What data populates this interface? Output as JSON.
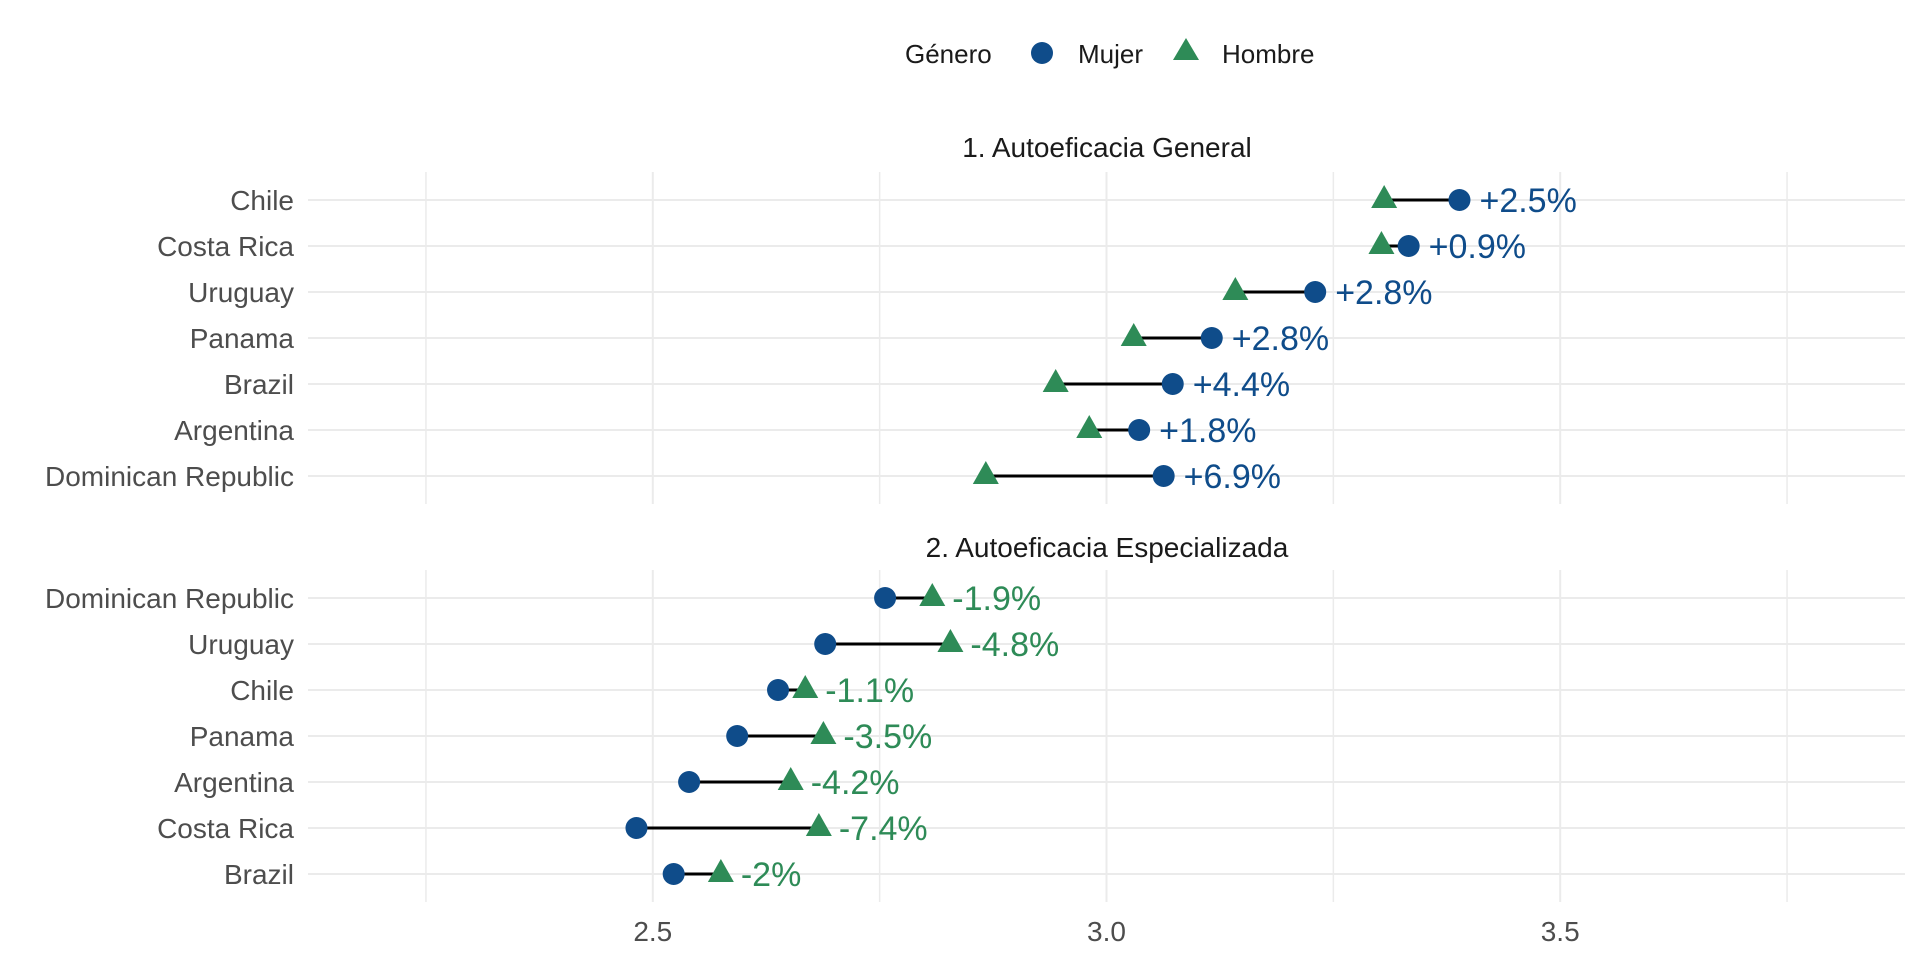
{
  "chart_data": {
    "type": "dumbbell",
    "legend": {
      "title": "Género",
      "placement": "top",
      "entries": [
        {
          "name": "Mujer",
          "shape": "circle",
          "color": "#0f4c8a"
        },
        {
          "name": "Hombre",
          "shape": "triangle",
          "color": "#2e8b57"
        }
      ]
    },
    "x_axis": {
      "range": [
        2.12,
        3.88
      ],
      "ticks": [
        2.5,
        3.0,
        3.5
      ],
      "tick_labels": [
        "2.5",
        "3.0",
        "3.5"
      ],
      "minor_ticks": [
        2.25,
        2.75,
        3.25,
        3.75
      ],
      "grid": true
    },
    "panels": [
      {
        "title": "1. Autoeficacia General",
        "label_color": "#0f4c8a",
        "rows": [
          {
            "country": "Chile",
            "mujer": 3.389,
            "hombre": 3.306,
            "label": "+2.5%"
          },
          {
            "country": "Costa Rica",
            "mujer": 3.333,
            "hombre": 3.303,
            "label": "+0.9%"
          },
          {
            "country": "Uruguay",
            "mujer": 3.23,
            "hombre": 3.142,
            "label": "+2.8%"
          },
          {
            "country": "Panama",
            "mujer": 3.116,
            "hombre": 3.03,
            "label": "+2.8%"
          },
          {
            "country": "Brazil",
            "mujer": 3.073,
            "hombre": 2.944,
            "label": "+4.4%"
          },
          {
            "country": "Argentina",
            "mujer": 3.036,
            "hombre": 2.981,
            "label": "+1.8%"
          },
          {
            "country": "Dominican Republic",
            "mujer": 3.063,
            "hombre": 2.867,
            "label": "+6.9%"
          }
        ]
      },
      {
        "title": "2. Autoeficacia Especializada",
        "label_color": "#2e8b57",
        "rows": [
          {
            "country": "Dominican Republic",
            "mujer": 2.756,
            "hombre": 2.808,
            "label": "-1.9%"
          },
          {
            "country": "Uruguay",
            "mujer": 2.69,
            "hombre": 2.828,
            "label": "-4.8%"
          },
          {
            "country": "Chile",
            "mujer": 2.638,
            "hombre": 2.668,
            "label": "-1.1%"
          },
          {
            "country": "Panama",
            "mujer": 2.593,
            "hombre": 2.688,
            "label": "-3.5%"
          },
          {
            "country": "Argentina",
            "mujer": 2.54,
            "hombre": 2.652,
            "label": "-4.2%"
          },
          {
            "country": "Costa Rica",
            "mujer": 2.482,
            "hombre": 2.683,
            "label": "-7.4%"
          },
          {
            "country": "Brazil",
            "mujer": 2.523,
            "hombre": 2.575,
            "label": "-2%"
          }
        ]
      }
    ]
  }
}
